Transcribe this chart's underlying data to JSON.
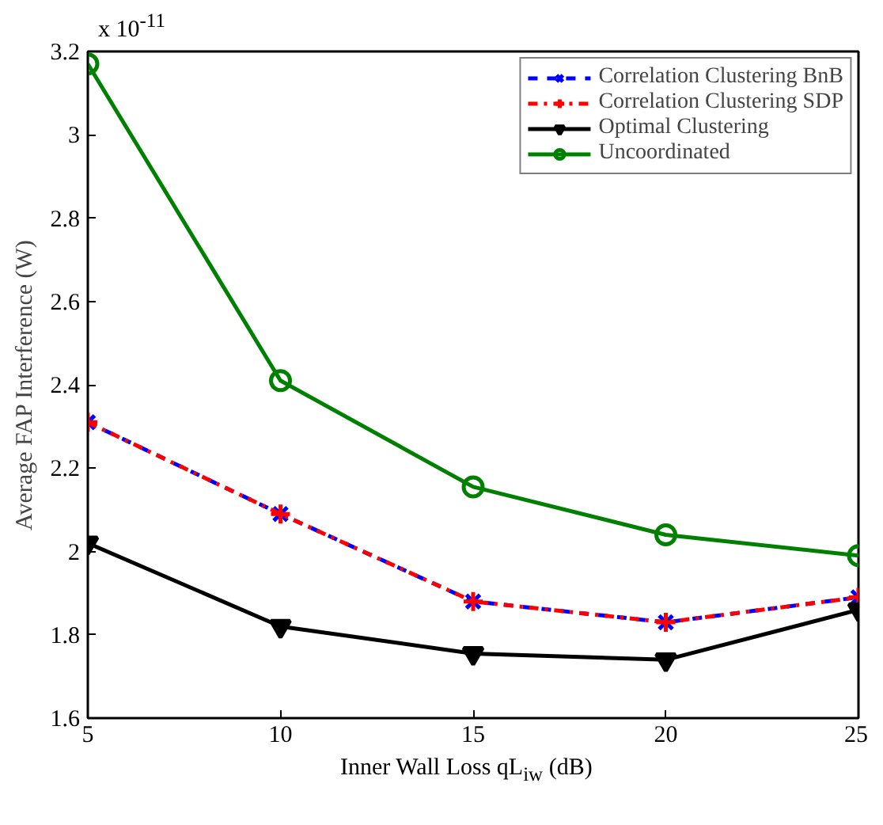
{
  "chart_data": {
    "type": "line",
    "xlabel": "Inner Wall Loss qL$_{iw}$ (dB)",
    "ylabel": "Average FAP Interference (W)",
    "annotations": [
      "x 10$^{-11}$"
    ],
    "x": [
      5,
      10,
      15,
      20,
      25
    ],
    "series": [
      {
        "name": "Correlation Clustering BnB",
        "color": "#0000ff",
        "marker": "x",
        "line_style": "dashed",
        "values": [
          2.31,
          2.09,
          1.88,
          1.83,
          1.89
        ]
      },
      {
        "name": "Correlation Clustering SDP",
        "color": "#ff0000",
        "marker": "cross",
        "line_style": "dashdot",
        "values": [
          2.31,
          2.09,
          1.88,
          1.83,
          1.89
        ]
      },
      {
        "name": "Optimal Clustering",
        "color": "#000000",
        "marker": "triangle_down",
        "line_style": "solid",
        "values": [
          2.02,
          1.82,
          1.755,
          1.74,
          1.86
        ]
      },
      {
        "name": "Uncoordinated",
        "color": "#008000",
        "marker": "circle",
        "line_style": "solid",
        "values": [
          3.17,
          2.41,
          2.155,
          2.04,
          1.99
        ]
      }
    ],
    "xlim": [
      5,
      25
    ],
    "xticks": [
      5,
      10,
      15,
      20,
      25
    ],
    "ylim": [
      1.6,
      3.2
    ],
    "yticks": [
      1.6,
      1.8,
      2,
      2.2,
      2.4,
      2.6,
      2.8,
      3,
      3.2
    ],
    "grid": false,
    "legend": "top right"
  }
}
